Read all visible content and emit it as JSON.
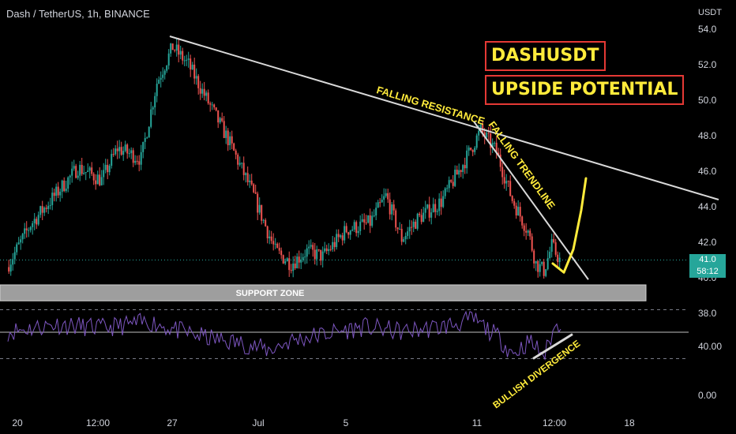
{
  "header": {
    "title": "Dash / TetherUS, 1h, BINANCE",
    "currency": "USDT"
  },
  "callouts": [
    "DASHUSDT",
    "UPSIDE POTENTIAL"
  ],
  "price_tag": {
    "price": "41.0",
    "countdown": "58:12"
  },
  "colors": {
    "background": "#000000",
    "up": "#26a69a",
    "down": "#ef5350",
    "rsi": "#7e57c2",
    "annotation": "#ffeb3b",
    "trendline": "#d9d9d9",
    "callout_border": "#e53935"
  },
  "chart_data": [
    {
      "type": "candlestick",
      "title": "",
      "x_ticks": [
        "20",
        "12:00",
        "27",
        "Jul",
        "5",
        "11",
        "12:00",
        "18"
      ],
      "y_ticks": [
        "38.0",
        "40.0",
        "42.0",
        "44.0",
        "46.0",
        "48.0",
        "50.0",
        "52.0",
        "54.0"
      ],
      "ylim": [
        37.0,
        54.4
      ],
      "last_price": 41.0,
      "keypoints": [
        {
          "t": 0,
          "price": 40.6
        },
        {
          "t": 3,
          "price": 43.0
        },
        {
          "t": 6,
          "price": 44.6
        },
        {
          "t": 9,
          "price": 46.2
        },
        {
          "t": 12,
          "price": 45.5
        },
        {
          "t": 14,
          "price": 47.3
        },
        {
          "t": 17,
          "price": 46.7
        },
        {
          "t": 19,
          "price": 51.0
        },
        {
          "t": 21,
          "price": 53.0
        },
        {
          "t": 23,
          "price": 52.0
        },
        {
          "t": 25,
          "price": 50.3
        },
        {
          "t": 28,
          "price": 47.8
        },
        {
          "t": 31,
          "price": 44.9
        },
        {
          "t": 34,
          "price": 41.5
        },
        {
          "t": 36,
          "price": 40.8
        },
        {
          "t": 38,
          "price": 41.5
        },
        {
          "t": 40,
          "price": 41.2
        },
        {
          "t": 43,
          "price": 42.7
        },
        {
          "t": 46,
          "price": 43.1
        },
        {
          "t": 48,
          "price": 44.6
        },
        {
          "t": 50,
          "price": 42.2
        },
        {
          "t": 52,
          "price": 43.3
        },
        {
          "t": 55,
          "price": 44.3
        },
        {
          "t": 58,
          "price": 46.6
        },
        {
          "t": 60,
          "price": 48.3
        },
        {
          "t": 62,
          "price": 47.1
        },
        {
          "t": 64,
          "price": 44.4
        },
        {
          "t": 66,
          "price": 42.6
        },
        {
          "t": 67,
          "price": 40.8
        },
        {
          "t": 68,
          "price": 40.4
        },
        {
          "t": 69,
          "price": 41.8
        },
        {
          "t": 70,
          "price": 41.0
        }
      ],
      "support_zone": {
        "label": "SUPPORT ZONE",
        "low": 38.7,
        "high": 39.6
      },
      "lines": [
        {
          "label": "FALLING RESISTANCE",
          "from": {
            "t": 20.5,
            "price": 53.6
          },
          "to": {
            "t": 90,
            "price": 44.4
          }
        },
        {
          "label": "FALLING TRENDLINE",
          "from": {
            "t": 59.0,
            "price": 48.8
          },
          "to": {
            "t": 73.5,
            "price": 39.9
          }
        }
      ],
      "projection": {
        "color": "#ffeb3b",
        "points": [
          {
            "t": 69.0,
            "price": 40.8
          },
          {
            "t": 70.4,
            "price": 40.3
          },
          {
            "t": 71.6,
            "price": 41.6
          },
          {
            "t": 72.6,
            "price": 43.8
          },
          {
            "t": 73.2,
            "price": 45.6
          }
        ]
      }
    },
    {
      "type": "line",
      "series": [
        {
          "name": ""
        }
      ],
      "y_ticks": [
        "0.00",
        "40.00"
      ],
      "ylim": [
        0,
        100
      ],
      "guides": [
        70,
        30
      ],
      "keypoints": [
        {
          "t": 0,
          "rsi": 52
        },
        {
          "t": 6,
          "rsi": 58
        },
        {
          "t": 12,
          "rsi": 55
        },
        {
          "t": 18,
          "rsi": 60
        },
        {
          "t": 22,
          "rsi": 52
        },
        {
          "t": 26,
          "rsi": 46
        },
        {
          "t": 30,
          "rsi": 42
        },
        {
          "t": 33,
          "rsi": 37
        },
        {
          "t": 36,
          "rsi": 45
        },
        {
          "t": 40,
          "rsi": 50
        },
        {
          "t": 45,
          "rsi": 56
        },
        {
          "t": 50,
          "rsi": 52
        },
        {
          "t": 55,
          "rsi": 56
        },
        {
          "t": 59,
          "rsi": 62
        },
        {
          "t": 62,
          "rsi": 48
        },
        {
          "t": 64,
          "rsi": 34
        },
        {
          "t": 66,
          "rsi": 44
        },
        {
          "t": 68,
          "rsi": 33
        },
        {
          "t": 69,
          "rsi": 52
        },
        {
          "t": 70,
          "rsi": 60
        }
      ],
      "annotation": {
        "label": "BULLISH DIVERGENCE",
        "from": {
          "t": 66.5,
          "rsi": 30
        },
        "to": {
          "t": 71.5,
          "rsi": 50
        }
      }
    }
  ]
}
